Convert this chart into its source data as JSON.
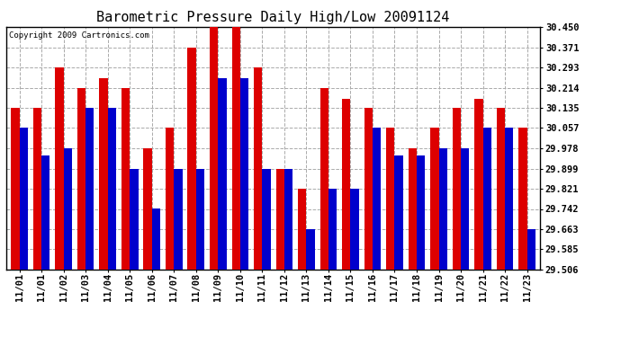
{
  "title": "Barometric Pressure Daily High/Low 20091124",
  "copyright": "Copyright 2009 Cartronics.com",
  "dates": [
    "11/01",
    "11/01",
    "11/02",
    "11/03",
    "11/04",
    "11/05",
    "11/06",
    "11/07",
    "11/08",
    "11/09",
    "11/10",
    "11/11",
    "11/12",
    "11/13",
    "11/14",
    "11/15",
    "11/16",
    "11/17",
    "11/18",
    "11/19",
    "11/20",
    "11/21",
    "11/22",
    "11/23"
  ],
  "highs": [
    30.135,
    30.135,
    30.293,
    30.214,
    30.25,
    30.214,
    29.978,
    30.057,
    30.371,
    30.45,
    30.45,
    30.293,
    29.899,
    29.821,
    30.214,
    30.171,
    30.135,
    30.057,
    29.978,
    30.057,
    30.135,
    30.171,
    30.135,
    30.057
  ],
  "lows": [
    30.057,
    29.95,
    29.978,
    30.135,
    30.135,
    29.899,
    29.742,
    29.899,
    29.899,
    30.25,
    30.25,
    29.899,
    29.899,
    29.663,
    29.821,
    29.821,
    30.057,
    29.95,
    29.95,
    29.978,
    29.978,
    30.057,
    30.057,
    29.663
  ],
  "bar_color_high": "#dd0000",
  "bar_color_low": "#0000cc",
  "bg_color": "#ffffff",
  "grid_color": "#aaaaaa",
  "yticks": [
    29.506,
    29.585,
    29.663,
    29.742,
    29.821,
    29.899,
    29.978,
    30.057,
    30.135,
    30.214,
    30.293,
    30.371,
    30.45
  ],
  "ylim_min": 29.506,
  "ylim_max": 30.45,
  "title_fontsize": 11,
  "tick_fontsize": 7.5,
  "bar_width": 0.38
}
